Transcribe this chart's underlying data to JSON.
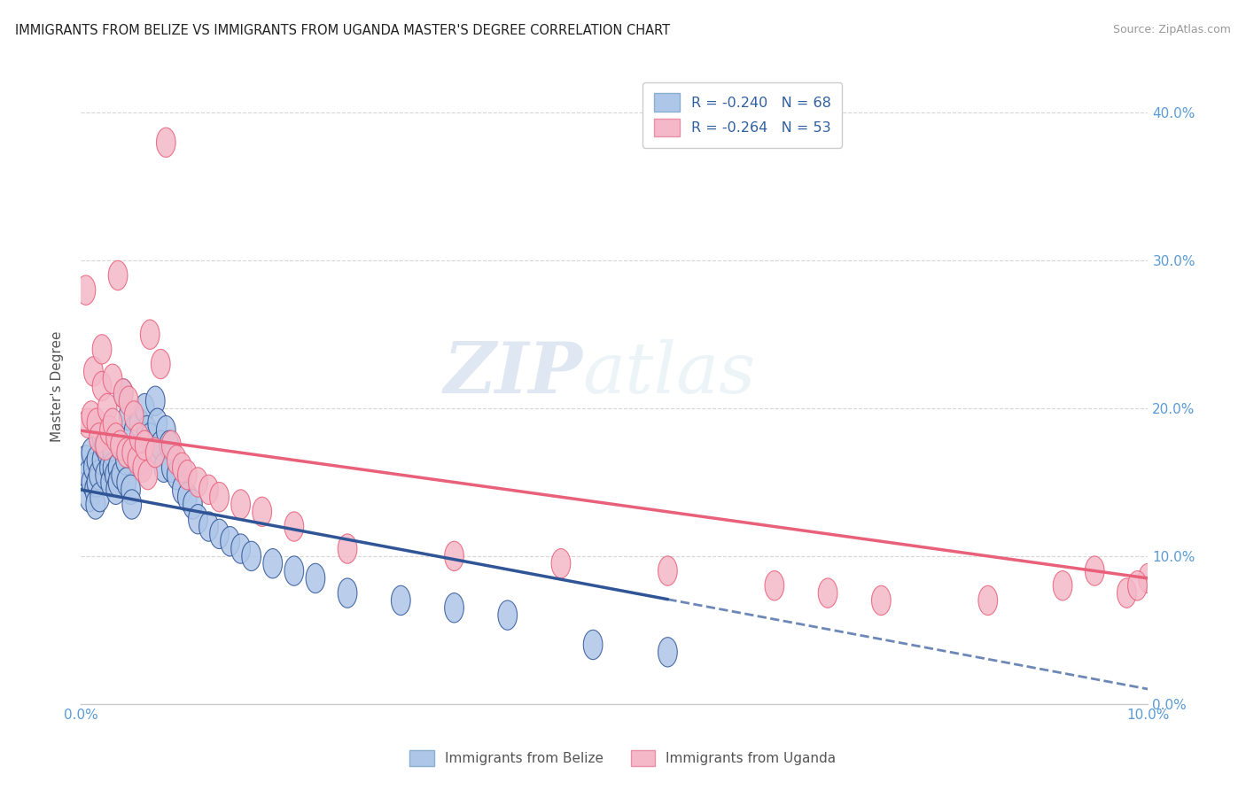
{
  "title": "IMMIGRANTS FROM BELIZE VS IMMIGRANTS FROM UGANDA MASTER'S DEGREE CORRELATION CHART",
  "source_text": "Source: ZipAtlas.com",
  "ylabel": "Master's Degree",
  "legend_label1": "Immigrants from Belize",
  "legend_label2": "Immigrants from Uganda",
  "r1": -0.24,
  "n1": 68,
  "r2": -0.264,
  "n2": 53,
  "color_belize": "#aec6e8",
  "color_uganda": "#f4b8c8",
  "color_belize_line": "#2f5597",
  "color_uganda_line": "#e8607a",
  "watermark_zip": "ZIP",
  "watermark_atlas": "atlas",
  "xlim": [
    0.0,
    10.0
  ],
  "ylim": [
    0.0,
    43.0
  ],
  "yticks": [
    0,
    10,
    20,
    30,
    40
  ],
  "belize_x": [
    0.05,
    0.07,
    0.08,
    0.1,
    0.1,
    0.12,
    0.13,
    0.14,
    0.15,
    0.15,
    0.17,
    0.18,
    0.2,
    0.2,
    0.22,
    0.23,
    0.25,
    0.25,
    0.27,
    0.28,
    0.3,
    0.3,
    0.32,
    0.33,
    0.35,
    0.35,
    0.37,
    0.38,
    0.4,
    0.42,
    0.43,
    0.45,
    0.47,
    0.48,
    0.5,
    0.52,
    0.55,
    0.57,
    0.6,
    0.62,
    0.65,
    0.68,
    0.7,
    0.72,
    0.75,
    0.78,
    0.8,
    0.83,
    0.85,
    0.9,
    0.95,
    1.0,
    1.05,
    1.1,
    1.2,
    1.3,
    1.4,
    1.5,
    1.6,
    1.8,
    2.0,
    2.2,
    2.5,
    3.0,
    3.5,
    4.0,
    4.8,
    5.5
  ],
  "belize_y": [
    16.5,
    15.5,
    14.0,
    17.0,
    15.0,
    16.0,
    14.5,
    13.5,
    16.5,
    15.0,
    15.5,
    14.0,
    18.0,
    16.5,
    17.5,
    15.5,
    18.5,
    17.0,
    16.0,
    15.0,
    17.0,
    16.0,
    15.5,
    14.5,
    16.0,
    15.0,
    17.5,
    15.5,
    21.0,
    16.5,
    15.0,
    19.5,
    14.5,
    13.5,
    18.5,
    17.0,
    19.0,
    16.5,
    20.0,
    18.5,
    18.0,
    17.0,
    20.5,
    19.0,
    17.5,
    16.0,
    18.5,
    17.5,
    16.0,
    15.5,
    14.5,
    14.0,
    13.5,
    12.5,
    12.0,
    11.5,
    11.0,
    10.5,
    10.0,
    9.5,
    9.0,
    8.5,
    7.5,
    7.0,
    6.5,
    6.0,
    4.0,
    3.5
  ],
  "uganda_x": [
    0.05,
    0.07,
    0.1,
    0.12,
    0.15,
    0.17,
    0.2,
    0.2,
    0.23,
    0.25,
    0.27,
    0.3,
    0.3,
    0.33,
    0.35,
    0.37,
    0.4,
    0.43,
    0.45,
    0.48,
    0.5,
    0.53,
    0.55,
    0.58,
    0.6,
    0.63,
    0.65,
    0.7,
    0.75,
    0.8,
    0.85,
    0.9,
    0.95,
    1.0,
    1.1,
    1.2,
    1.3,
    1.5,
    1.7,
    2.0,
    2.5,
    3.5,
    4.5,
    5.5,
    6.5,
    7.0,
    7.5,
    8.5,
    9.2,
    9.5,
    9.8,
    10.0,
    9.9
  ],
  "uganda_y": [
    28.0,
    19.0,
    19.5,
    22.5,
    19.0,
    18.0,
    24.0,
    21.5,
    17.5,
    20.0,
    18.5,
    22.0,
    19.0,
    18.0,
    29.0,
    17.5,
    21.0,
    17.0,
    20.5,
    17.0,
    19.5,
    16.5,
    18.0,
    16.0,
    17.5,
    15.5,
    25.0,
    17.0,
    23.0,
    38.0,
    17.5,
    16.5,
    16.0,
    15.5,
    15.0,
    14.5,
    14.0,
    13.5,
    13.0,
    12.0,
    10.5,
    10.0,
    9.5,
    9.0,
    8.0,
    7.5,
    7.0,
    7.0,
    8.0,
    9.0,
    7.5,
    8.5,
    8.0
  ],
  "belize_trendline_x0": 0.0,
  "belize_trendline_y0": 14.5,
  "belize_trendline_x1": 10.0,
  "belize_trendline_y1": 1.0,
  "belize_solid_end": 5.5,
  "uganda_trendline_x0": 0.0,
  "uganda_trendline_y0": 18.5,
  "uganda_trendline_x1": 10.0,
  "uganda_trendline_y1": 8.5
}
